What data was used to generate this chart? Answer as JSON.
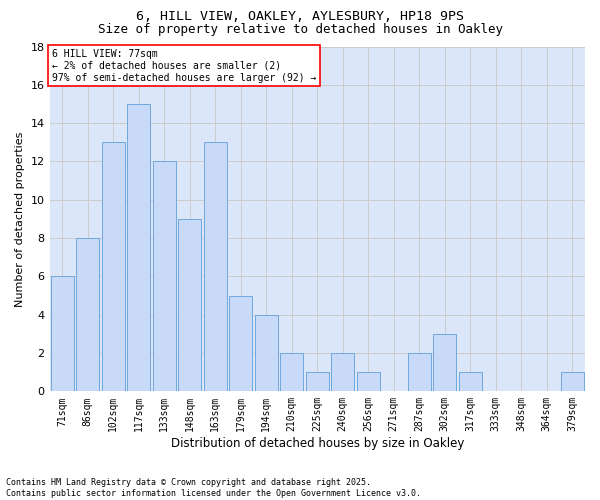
{
  "title1": "6, HILL VIEW, OAKLEY, AYLESBURY, HP18 9PS",
  "title2": "Size of property relative to detached houses in Oakley",
  "xlabel": "Distribution of detached houses by size in Oakley",
  "ylabel": "Number of detached properties",
  "categories": [
    "71sqm",
    "86sqm",
    "102sqm",
    "117sqm",
    "133sqm",
    "148sqm",
    "163sqm",
    "179sqm",
    "194sqm",
    "210sqm",
    "225sqm",
    "240sqm",
    "256sqm",
    "271sqm",
    "287sqm",
    "302sqm",
    "317sqm",
    "333sqm",
    "348sqm",
    "364sqm",
    "379sqm"
  ],
  "values": [
    6,
    8,
    13,
    15,
    12,
    9,
    13,
    5,
    4,
    2,
    1,
    2,
    1,
    0,
    2,
    3,
    1,
    0,
    0,
    0,
    1
  ],
  "bar_color": "#c9daf8",
  "bar_edgecolor": "#6fa8dc",
  "annotation_line1": "6 HILL VIEW: 77sqm",
  "annotation_line2": "← 2% of detached houses are smaller (2)",
  "annotation_line3": "97% of semi-detached houses are larger (92) →",
  "ylim": [
    0,
    18
  ],
  "yticks": [
    0,
    2,
    4,
    6,
    8,
    10,
    12,
    14,
    16,
    18
  ],
  "grid_color": "#cccccc",
  "bg_color": "#dce6f9",
  "footnote": "Contains HM Land Registry data © Crown copyright and database right 2025.\nContains public sector information licensed under the Open Government Licence v3.0.",
  "title1_fontsize": 9.5,
  "title2_fontsize": 9,
  "annotation_fontsize": 7,
  "ylabel_fontsize": 8,
  "xlabel_fontsize": 8.5,
  "xtick_fontsize": 7,
  "ytick_fontsize": 8,
  "footnote_fontsize": 6
}
